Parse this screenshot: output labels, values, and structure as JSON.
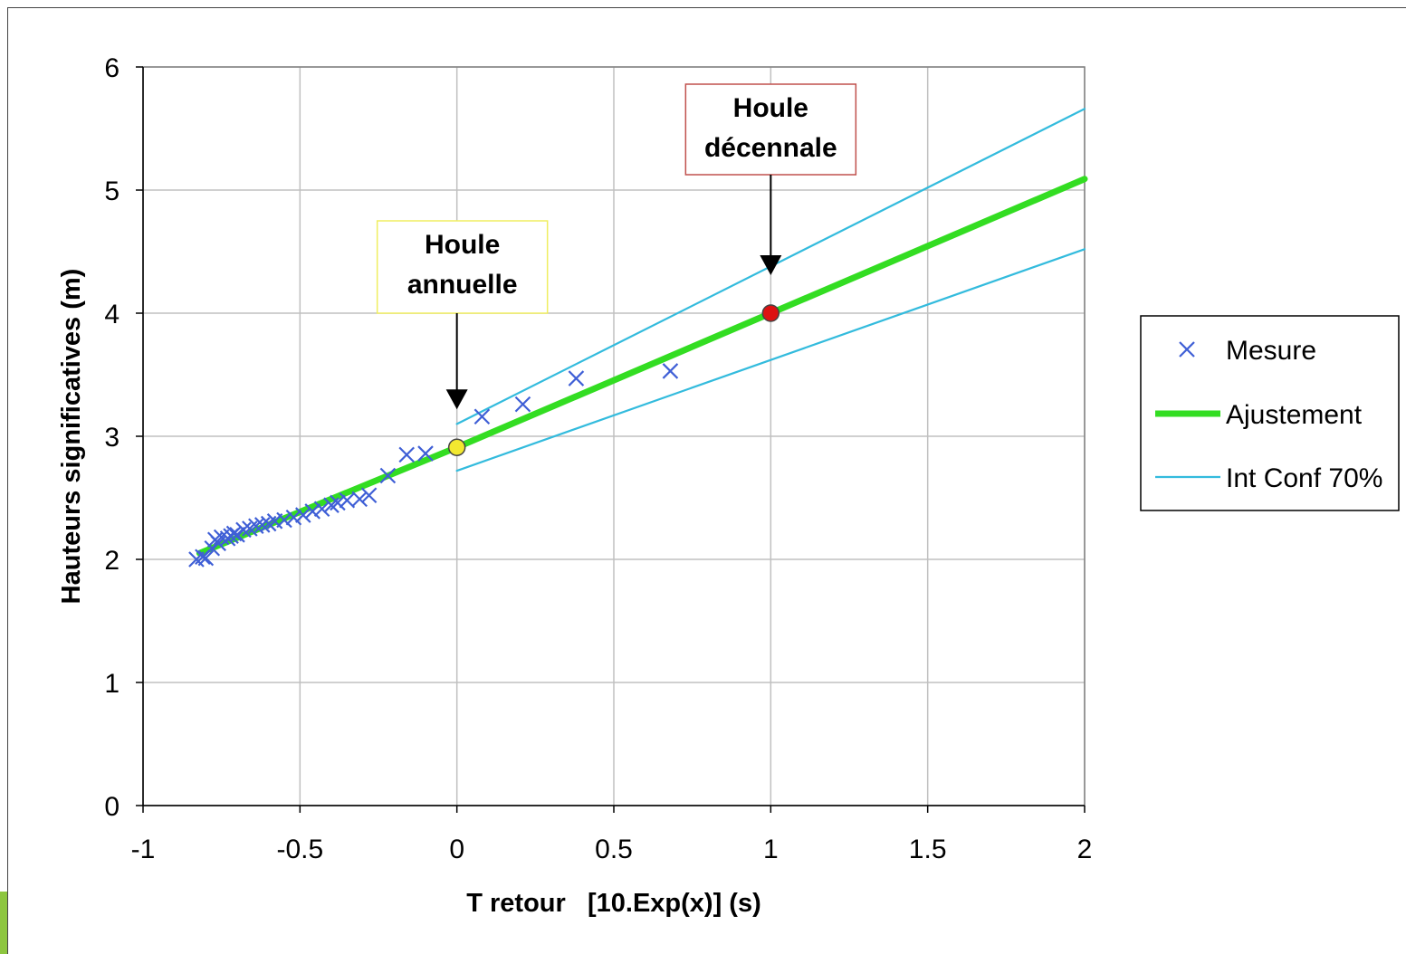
{
  "chart_data": {
    "type": "scatter",
    "title": "",
    "xlabel": "T retour   [10.Exp(x)] (s)",
    "ylabel": "Hauteurs significatives (m)",
    "xlim": [
      -1,
      2
    ],
    "ylim": [
      0,
      6
    ],
    "x_ticks": [
      -1,
      -0.5,
      0,
      0.5,
      1,
      1.5,
      2
    ],
    "x_tick_labels": [
      "-1",
      "-0.5",
      "0",
      "0.5",
      "1",
      "1.5",
      "2"
    ],
    "y_ticks": [
      0,
      1,
      2,
      3,
      4,
      5,
      6
    ],
    "y_tick_labels": [
      "0",
      "1",
      "2",
      "3",
      "4",
      "5",
      "6"
    ],
    "grid": true,
    "legend_position": "right",
    "series": [
      {
        "name": "Mesure",
        "kind": "markers",
        "marker": "x",
        "color": "#3f5fd6",
        "points": [
          [
            -0.83,
            2.0
          ],
          [
            -0.81,
            2.02
          ],
          [
            -0.8,
            2.01
          ],
          [
            -0.78,
            2.09
          ],
          [
            -0.77,
            2.16
          ],
          [
            -0.76,
            2.13
          ],
          [
            -0.75,
            2.18
          ],
          [
            -0.73,
            2.17
          ],
          [
            -0.72,
            2.19
          ],
          [
            -0.71,
            2.21
          ],
          [
            -0.7,
            2.2
          ],
          [
            -0.68,
            2.24
          ],
          [
            -0.66,
            2.25
          ],
          [
            -0.64,
            2.27
          ],
          [
            -0.62,
            2.28
          ],
          [
            -0.6,
            2.29
          ],
          [
            -0.58,
            2.31
          ],
          [
            -0.55,
            2.32
          ],
          [
            -0.52,
            2.34
          ],
          [
            -0.49,
            2.36
          ],
          [
            -0.46,
            2.39
          ],
          [
            -0.43,
            2.41
          ],
          [
            -0.4,
            2.44
          ],
          [
            -0.38,
            2.46
          ],
          [
            -0.35,
            2.48
          ],
          [
            -0.31,
            2.49
          ],
          [
            -0.28,
            2.52
          ],
          [
            -0.22,
            2.68
          ],
          [
            -0.16,
            2.85
          ],
          [
            -0.1,
            2.86
          ],
          [
            0.08,
            3.16
          ],
          [
            0.21,
            3.26
          ],
          [
            0.38,
            3.47
          ],
          [
            0.68,
            3.53
          ]
        ]
      },
      {
        "name": "Ajustement",
        "kind": "line",
        "color": "#33dd22",
        "points": [
          [
            -0.82,
            2.05
          ],
          [
            0,
            2.91
          ],
          [
            1,
            4.0
          ],
          [
            2,
            5.09
          ]
        ]
      },
      {
        "name": "Int Conf 70%",
        "kind": "line",
        "color": "#33bbdd",
        "points": [
          [
            0,
            3.1
          ],
          [
            2,
            5.66
          ]
        ]
      },
      {
        "name": "Int Conf 70%",
        "kind": "line",
        "color": "#33bbdd",
        "points": [
          [
            0,
            2.72
          ],
          [
            2,
            4.52
          ]
        ]
      }
    ],
    "highlights": [
      {
        "x": 0,
        "y": 2.91,
        "color": "#f2e830"
      },
      {
        "x": 1,
        "y": 4.0,
        "color": "#dd1111"
      }
    ],
    "annotations": [
      {
        "line1": "Houle",
        "line2": "annuelle",
        "x": 0,
        "y": 2.91,
        "border_color": "#f0ee60"
      },
      {
        "line1": "Houle",
        "line2": "décennale",
        "x": 1,
        "y": 4.0,
        "border_color": "#c0504d"
      }
    ],
    "legend": [
      {
        "label": "Mesure",
        "kind": "markers",
        "color": "#3f5fd6"
      },
      {
        "label": "Ajustement",
        "kind": "thick-line",
        "color": "#33dd22"
      },
      {
        "label": "Int Conf 70%",
        "kind": "thin-line",
        "color": "#33bbdd"
      }
    ]
  }
}
